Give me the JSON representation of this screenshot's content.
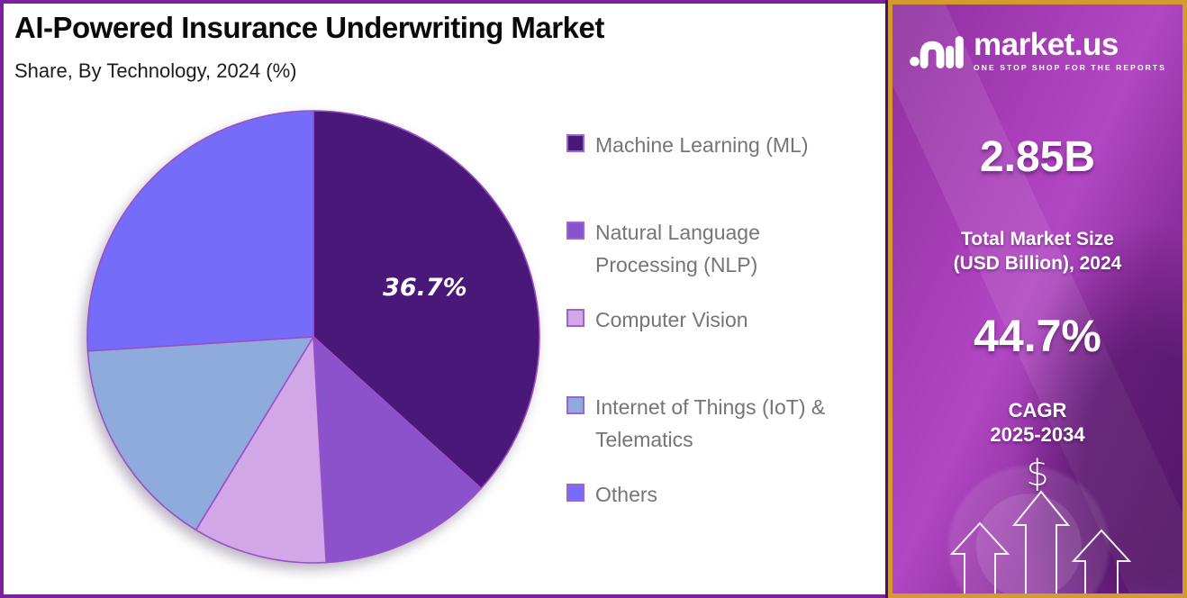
{
  "header": {
    "title": "AI-Powered Insurance Underwriting Market",
    "subtitle": "Share, By Technology, 2024 (%)"
  },
  "chart_data": {
    "type": "pie",
    "title": "AI-Powered Insurance Underwriting Market",
    "subtitle": "Share, By Technology, 2024 (%)",
    "unit": "%",
    "direction": "clockwise",
    "start_angle_deg": 0,
    "legend_position": "right",
    "series": [
      {
        "name": "Machine Learning (ML)",
        "value": 36.7,
        "color": "#4A1878",
        "data_label": "36.7%"
      },
      {
        "name": "Natural Language Processing (NLP)",
        "value": 12.4,
        "color": "#8B52CC",
        "data_label": null
      },
      {
        "name": "Computer Vision",
        "value": 9.6,
        "color": "#D2A7E8",
        "data_label": null
      },
      {
        "name": "Internet of Things (IoT) & Telematics",
        "value": 15.3,
        "color": "#8FAADC",
        "data_label": null
      },
      {
        "name": "Others",
        "value": 26.0,
        "color": "#766CFA",
        "data_label": null
      }
    ]
  },
  "sidebar": {
    "logo": {
      "brand": "market.us",
      "tagline": "ONE STOP SHOP FOR THE REPORTS"
    },
    "market_size": {
      "value": "2.85B",
      "label_line1": "Total Market Size",
      "label_line2": "(USD Billion), 2024"
    },
    "cagr": {
      "value": "44.7%",
      "label_line1": "CAGR",
      "label_line2": "2025-2034"
    },
    "dollar_symbol": "$"
  },
  "colors": {
    "outer_border": "#7B219F",
    "panel_border_gold": "#D49A2E",
    "panel_left_strip": "#451065",
    "panel_purple": "#A83EB8",
    "pie_stroke": "#9B4FC4",
    "pie_label_color": "#FFFFFF",
    "legend_swatch_border": "#9C63D2",
    "legend_text": "#757575"
  }
}
